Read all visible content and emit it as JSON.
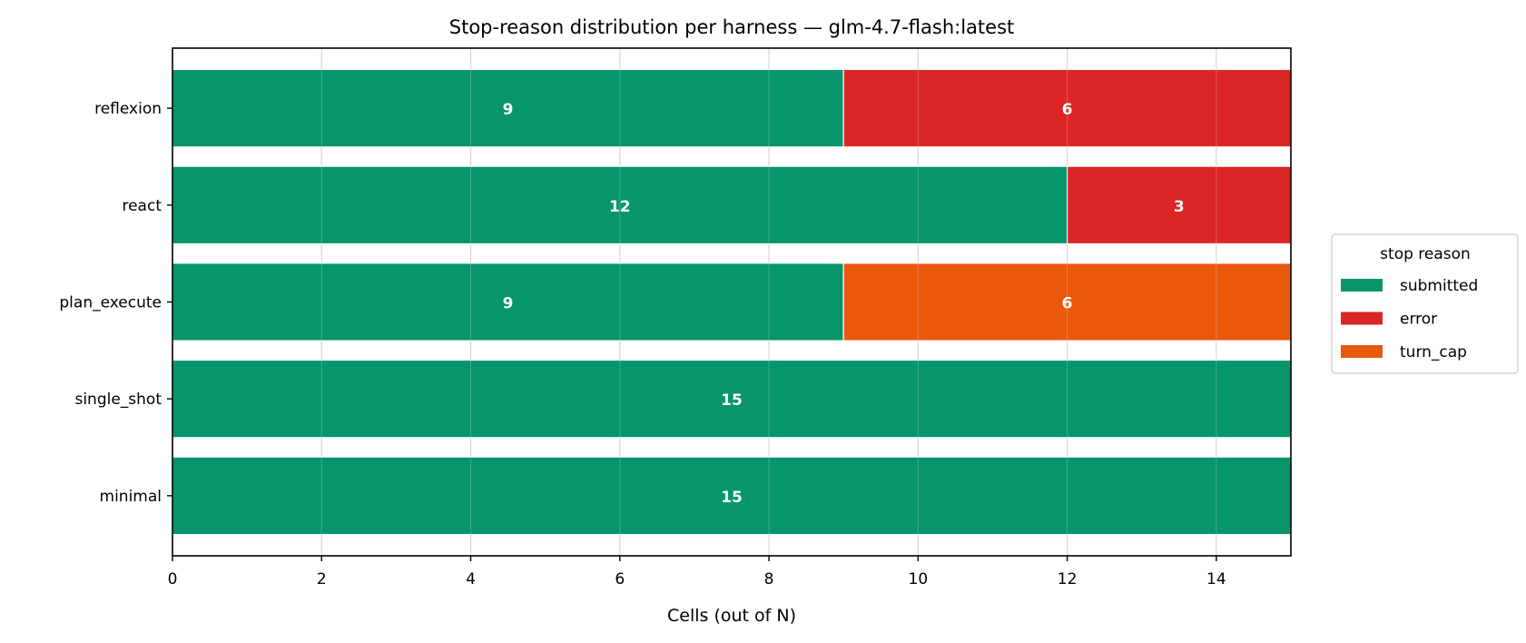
{
  "chart_data": {
    "type": "bar",
    "orientation": "horizontal",
    "stacked": true,
    "title": "Stop-reason distribution per harness — glm-4.7-flash:latest",
    "xlabel": "Cells (out of N)",
    "ylabel": "",
    "xlim": [
      0,
      15
    ],
    "xticks": [
      0,
      2,
      4,
      6,
      8,
      10,
      12,
      14
    ],
    "grid": "x",
    "categories": [
      "reflexion",
      "react",
      "plan_execute",
      "single_shot",
      "minimal"
    ],
    "series": [
      {
        "name": "submitted",
        "color": "#069669",
        "values": [
          9,
          12,
          9,
          15,
          15
        ]
      },
      {
        "name": "error",
        "color": "#dc2626",
        "values": [
          6,
          3,
          0,
          0,
          0
        ]
      },
      {
        "name": "turn_cap",
        "color": "#ea580c",
        "values": [
          0,
          0,
          6,
          0,
          0
        ]
      }
    ],
    "legend": {
      "title": "stop reason",
      "placement": "right"
    }
  }
}
